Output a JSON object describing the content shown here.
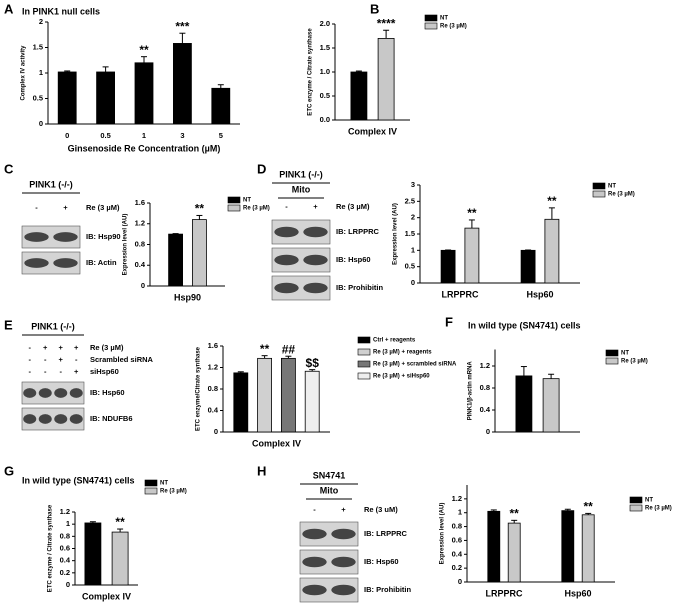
{
  "panels": [
    "A",
    "B",
    "C",
    "D",
    "E",
    "F",
    "G",
    "H"
  ],
  "chart_data": [
    {
      "type": "bar",
      "title": "In PINK1 null cells",
      "y_label": "Complex IV activity",
      "x_label": "Ginsenoside Re Concentration (µM)",
      "categories": [
        "0",
        "0.5",
        "1",
        "3",
        "5"
      ],
      "values": [
        1.02,
        1.02,
        1.2,
        1.58,
        0.7
      ],
      "errors": [
        0.02,
        0.1,
        0.12,
        0.2,
        0.07
      ],
      "significance": [
        null,
        null,
        "**",
        "***",
        null
      ],
      "color": "#000000",
      "ylim": [
        0,
        2
      ],
      "yticks": [
        0,
        0.5,
        1,
        1.5,
        2
      ]
    },
    {
      "type": "bar",
      "y_label": "ETC enzyme / Citrate synthase",
      "categories": [
        "Complex IV"
      ],
      "series": [
        {
          "name": "NT",
          "color": "#000000",
          "values": [
            1.0
          ],
          "errors": [
            0.02
          ],
          "significance": [
            null
          ]
        },
        {
          "name": "Re (3 µM)",
          "color": "#c8c8c8",
          "values": [
            1.7
          ],
          "errors": [
            0.17
          ],
          "significance": [
            "****"
          ]
        }
      ],
      "ylim": [
        0,
        2
      ],
      "yticks": [
        {
          "value": 0,
          "label": "0.0"
        },
        {
          "value": 0.5,
          "label": "0.5"
        },
        {
          "value": 1,
          "label": "1.0"
        },
        {
          "value": 1.5,
          "label": "1.5"
        },
        {
          "value": 2,
          "label": "2.0"
        }
      ]
    },
    {
      "type": "bar",
      "y_label": "Expression level (AU)",
      "categories": [
        "Hsp90"
      ],
      "series": [
        {
          "name": "NT",
          "color": "#000000",
          "values": [
            1.0
          ],
          "errors": [
            0.01
          ],
          "significance": [
            null
          ]
        },
        {
          "name": "Re (3 µM)",
          "color": "#c8c8c8",
          "values": [
            1.28
          ],
          "errors": [
            0.08
          ],
          "significance": [
            "**"
          ]
        }
      ],
      "ylim": [
        0,
        1.6
      ],
      "yticks": [
        0,
        0.4,
        0.8,
        1.2,
        1.6
      ]
    },
    {
      "type": "bar",
      "y_label": "Expression level (AU)",
      "categories": [
        "LRPPRC",
        "Hsp60"
      ],
      "series": [
        {
          "name": "NT",
          "color": "#000000",
          "values": [
            1.0,
            1.0
          ],
          "errors": [
            0.01,
            0.01
          ],
          "significance": [
            null,
            null
          ]
        },
        {
          "name": "Re (3 µM)",
          "color": "#c8c8c8",
          "values": [
            1.68,
            1.95
          ],
          "errors": [
            0.25,
            0.35
          ],
          "significance": [
            "**",
            "**"
          ]
        }
      ],
      "ylim": [
        0,
        3
      ],
      "yticks": [
        0,
        0.5,
        1,
        1.5,
        2,
        2.5,
        3
      ]
    },
    {
      "type": "bar",
      "y_label": "ETC enzyme/Citrate synthase",
      "x_label": "Complex IV",
      "categories": [
        null
      ],
      "series": [
        {
          "name": "Ctrl + reagents",
          "color": "#000000",
          "values": [
            1.1
          ],
          "errors": [
            0.02
          ],
          "significance": [
            null
          ]
        },
        {
          "name": "Re (3 µM) + reagents",
          "color": "#d0d0d0",
          "values": [
            1.37
          ],
          "errors": [
            0.05
          ],
          "significance": [
            "**"
          ]
        },
        {
          "name": "Re (3 µM) + scrambled siRNA",
          "color": "#777777",
          "values": [
            1.37
          ],
          "errors": [
            0.04
          ],
          "significance": [
            "##"
          ]
        },
        {
          "name": "Re (3 µM) + siHsp60",
          "color": "#eeeeee",
          "values": [
            1.13
          ],
          "errors": [
            0.03
          ],
          "significance": [
            "$$"
          ]
        }
      ],
      "ylim": [
        0,
        1.6
      ],
      "yticks": [
        0,
        0.4,
        0.8,
        1.2,
        1.6
      ]
    },
    {
      "type": "bar",
      "title": "In wild type (SN4741) cells",
      "y_label": "PINK1/β-actin mRNA",
      "categories": [
        null
      ],
      "series": [
        {
          "name": "NT",
          "color": "#000000",
          "values": [
            1.02
          ],
          "errors": [
            0.17
          ],
          "significance": [
            null
          ]
        },
        {
          "name": "Re (3 µM)",
          "color": "#c8c8c8",
          "values": [
            0.97
          ],
          "errors": [
            0.08
          ],
          "significance": [
            null
          ]
        }
      ],
      "ylim": [
        0,
        1.5
      ],
      "yticks": [
        0,
        0.4,
        0.8,
        1.2
      ]
    },
    {
      "type": "bar",
      "title": "In wild type (SN4741) cells",
      "y_label": "ETC enzyme / Citrate synthase",
      "categories": [
        "Complex IV"
      ],
      "series": [
        {
          "name": "NT",
          "color": "#000000",
          "values": [
            1.02
          ],
          "errors": [
            0.02
          ],
          "significance": [
            null
          ]
        },
        {
          "name": "Re (3 µM)",
          "color": "#c8c8c8",
          "values": [
            0.87
          ],
          "errors": [
            0.05
          ],
          "significance": [
            "**"
          ]
        }
      ],
      "ylim": [
        0,
        1.2
      ],
      "yticks": [
        0,
        0.2,
        0.4,
        0.6,
        0.8,
        1,
        1.2
      ]
    },
    {
      "type": "bar",
      "y_label": "Expression level (AU)",
      "categories": [
        "LRPPRC",
        "Hsp60"
      ],
      "series": [
        {
          "name": "NT",
          "color": "#000000",
          "values": [
            1.02,
            1.03
          ],
          "errors": [
            0.02,
            0.02
          ],
          "significance": [
            null,
            null
          ]
        },
        {
          "name": "Re (3 µM)",
          "color": "#c8c8c8",
          "values": [
            0.85,
            0.97
          ],
          "errors": [
            0.04,
            0.02
          ],
          "significance": [
            "**",
            "**"
          ]
        }
      ],
      "ylim": [
        0,
        1.4
      ],
      "yticks": [
        0,
        0.2,
        0.4,
        0.6,
        0.8,
        1,
        1.2
      ]
    }
  ],
  "blots": [
    {
      "header": "PINK1 (-/-)",
      "rows": [
        {
          "label": "Re (3 µM)",
          "signs": [
            "-",
            "+"
          ]
        }
      ],
      "bands": [
        "IB: Hsp90",
        "IB: Actin"
      ]
    },
    {
      "header": "PINK1 (-/-)",
      "sub": "Mito",
      "rows": [
        {
          "label": "Re (3 µM)",
          "signs": [
            "-",
            "+"
          ]
        }
      ],
      "bands": [
        "IB: LRPPRC",
        "IB: Hsp60",
        "IB: Prohibitin"
      ]
    },
    {
      "header": "PINK1 (-/-)",
      "rows": [
        {
          "label": "Re (3 µM)",
          "signs": [
            "-",
            "+",
            "+",
            "+"
          ]
        },
        {
          "label": "Scrambled siRNA",
          "signs": [
            "-",
            "-",
            "+",
            "-"
          ]
        },
        {
          "label": "siHsp60",
          "signs": [
            "-",
            "-",
            "-",
            "+"
          ]
        }
      ],
      "bands": [
        "IB: Hsp60",
        "IB: NDUFB6"
      ]
    },
    {
      "header": "SN4741",
      "sub": "Mito",
      "rows": [
        {
          "label": "Re (3 uM)",
          "signs": [
            "-",
            "+"
          ]
        }
      ],
      "bands": [
        "IB: LRPPRC",
        "IB: Hsp60",
        "IB: Prohibitin"
      ]
    }
  ]
}
